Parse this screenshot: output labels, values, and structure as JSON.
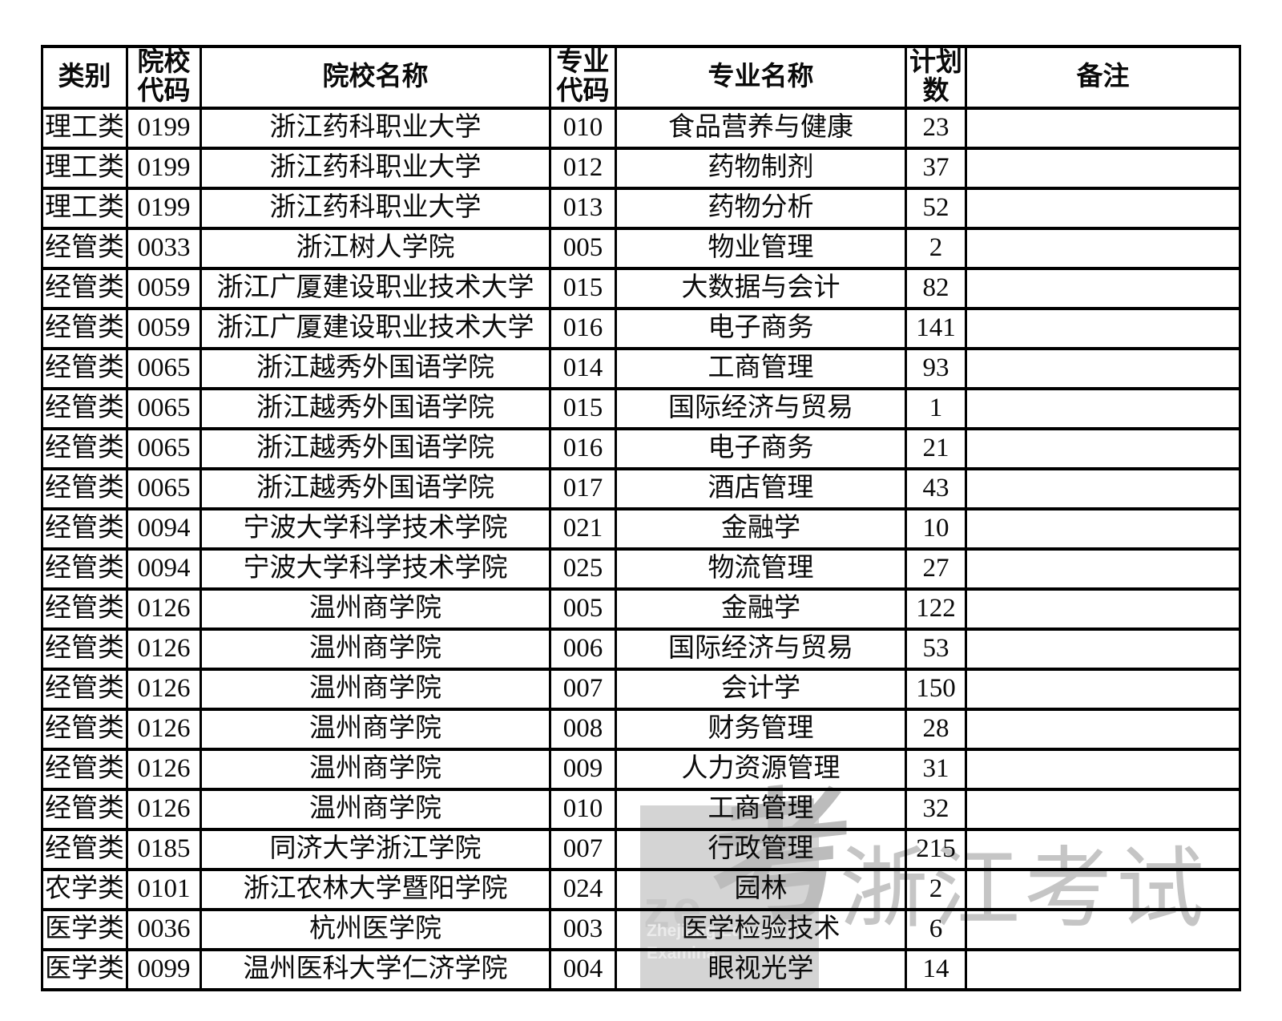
{
  "table": {
    "headers": [
      "类别",
      "院校\n代码",
      "院校名称",
      "专业\n代码",
      "专业名称",
      "计划\n数",
      "备注"
    ],
    "column_keys": [
      "category",
      "college_code",
      "college_name",
      "major_code",
      "major_name",
      "plan_count",
      "remark"
    ],
    "rows": [
      [
        "理工类",
        "0199",
        "浙江药科职业大学",
        "010",
        "食品营养与健康",
        "23",
        ""
      ],
      [
        "理工类",
        "0199",
        "浙江药科职业大学",
        "012",
        "药物制剂",
        "37",
        ""
      ],
      [
        "理工类",
        "0199",
        "浙江药科职业大学",
        "013",
        "药物分析",
        "52",
        ""
      ],
      [
        "经管类",
        "0033",
        "浙江树人学院",
        "005",
        "物业管理",
        "2",
        ""
      ],
      [
        "经管类",
        "0059",
        "浙江广厦建设职业技术大学",
        "015",
        "大数据与会计",
        "82",
        ""
      ],
      [
        "经管类",
        "0059",
        "浙江广厦建设职业技术大学",
        "016",
        "电子商务",
        "141",
        ""
      ],
      [
        "经管类",
        "0065",
        "浙江越秀外国语学院",
        "014",
        "工商管理",
        "93",
        ""
      ],
      [
        "经管类",
        "0065",
        "浙江越秀外国语学院",
        "015",
        "国际经济与贸易",
        "1",
        ""
      ],
      [
        "经管类",
        "0065",
        "浙江越秀外国语学院",
        "016",
        "电子商务",
        "21",
        ""
      ],
      [
        "经管类",
        "0065",
        "浙江越秀外国语学院",
        "017",
        "酒店管理",
        "43",
        ""
      ],
      [
        "经管类",
        "0094",
        "宁波大学科学技术学院",
        "021",
        "金融学",
        "10",
        ""
      ],
      [
        "经管类",
        "0094",
        "宁波大学科学技术学院",
        "025",
        "物流管理",
        "27",
        ""
      ],
      [
        "经管类",
        "0126",
        "温州商学院",
        "005",
        "金融学",
        "122",
        ""
      ],
      [
        "经管类",
        "0126",
        "温州商学院",
        "006",
        "国际经济与贸易",
        "53",
        ""
      ],
      [
        "经管类",
        "0126",
        "温州商学院",
        "007",
        "会计学",
        "150",
        ""
      ],
      [
        "经管类",
        "0126",
        "温州商学院",
        "008",
        "财务管理",
        "28",
        ""
      ],
      [
        "经管类",
        "0126",
        "温州商学院",
        "009",
        "人力资源管理",
        "31",
        ""
      ],
      [
        "经管类",
        "0126",
        "温州商学院",
        "010",
        "工商管理",
        "32",
        ""
      ],
      [
        "经管类",
        "0185",
        "同济大学浙江学院",
        "007",
        "行政管理",
        "215",
        ""
      ],
      [
        "农学类",
        "0101",
        "浙江农林大学暨阳学院",
        "024",
        "园林",
        "2",
        ""
      ],
      [
        "医学类",
        "0036",
        "杭州医学院",
        "003",
        "医学检验技术",
        "6",
        ""
      ],
      [
        "医学类",
        "0099",
        "温州医科大学仁济学院",
        "004",
        "眼视光学",
        "14",
        ""
      ]
    ]
  },
  "watermark": {
    "big_text": "浙江考试",
    "logo_glyph": "考",
    "logo_letters": "ze",
    "org_line1": "Zhejiang Education",
    "org_line2": "Examina",
    "colors": {
      "block_bg": "#d4d4d4",
      "glyph": "#bcbcbc",
      "big_text": "#c5c5c5"
    }
  }
}
